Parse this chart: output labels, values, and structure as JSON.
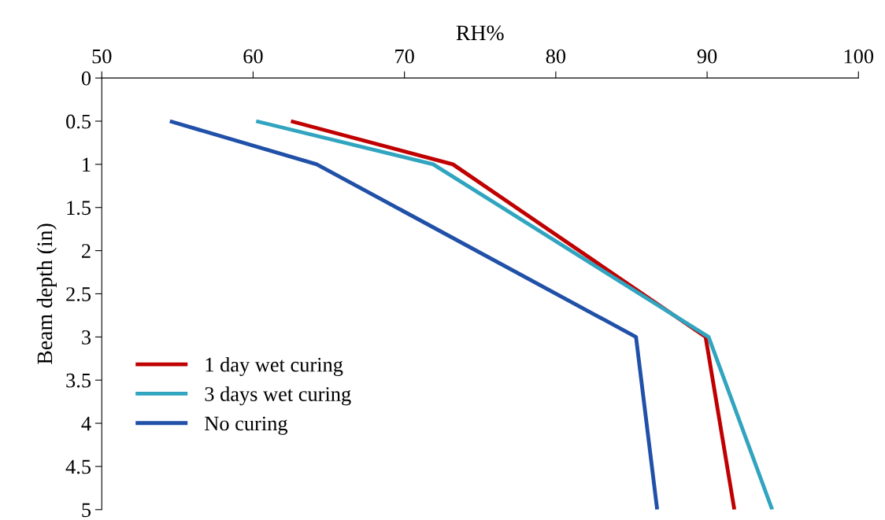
{
  "chart_data": {
    "type": "line",
    "xlabel": "RH%",
    "ylabel": "Beam depth (in)",
    "xlim": [
      50,
      100
    ],
    "xticks": [
      50,
      60,
      70,
      80,
      90,
      100
    ],
    "ylim": [
      5,
      0
    ],
    "yticks": [
      0,
      0.5,
      1,
      1.5,
      2,
      2.5,
      3,
      3.5,
      4,
      4.5,
      5
    ],
    "grid": false,
    "legend": "bottom left",
    "marker": "none",
    "line_style": "solid",
    "series": [
      {
        "name": "1 day wet curing",
        "color": "#c00000",
        "x": [
          62.5,
          73.2,
          89.9,
          91.8
        ],
        "values": [
          0.5,
          1,
          3,
          5
        ]
      },
      {
        "name": "3 days wet curing",
        "color": "#31a4c0",
        "x": [
          60.2,
          71.9,
          90.1,
          94.3
        ],
        "values": [
          0.5,
          1,
          3,
          5
        ]
      },
      {
        "name": "No curing",
        "color": "#2050a8",
        "x": [
          54.5,
          64.2,
          85.3,
          86.7
        ],
        "values": [
          0.5,
          1,
          3,
          5
        ]
      }
    ]
  }
}
